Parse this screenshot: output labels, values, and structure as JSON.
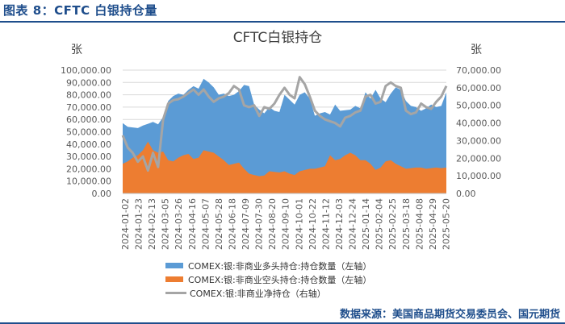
{
  "header": {
    "figure_label": "图表 8：CFTC 白银持仓量",
    "source": "数据来源：美国商品期货交易委员会、国元期货"
  },
  "colors": {
    "long_area": "#5b9bd5",
    "short_area": "#ed7d31",
    "net_line": "#a5a5a5",
    "grid": "#d9d9d9",
    "accent": "#1f4e8c"
  },
  "chart_data": {
    "type": "area",
    "title": "CFTC白银持仓",
    "ylabel_left": "张",
    "ylabel_right": "张",
    "ylim_left": [
      0,
      100000
    ],
    "ylim_right": [
      0,
      70000
    ],
    "left_ticks": [
      "0.00",
      "10,000.00",
      "20,000.00",
      "30,000.00",
      "40,000.00",
      "50,000.00",
      "60,000.00",
      "70,000.00",
      "80,000.00",
      "90,000.00",
      "100,000.00"
    ],
    "right_ticks": [
      "0.00",
      "10,000.00",
      "20,000.00",
      "30,000.00",
      "40,000.00",
      "50,000.00",
      "60,000.00",
      "70,000.00"
    ],
    "x_tick_labels": [
      "2024-01-02",
      "2024-01-23",
      "2024-02-13",
      "2024-03-05",
      "2024-03-26",
      "2024-04-16",
      "2024-05-07",
      "2024-05-28",
      "2024-06-18",
      "2024-07-09",
      "2024-07-30",
      "2024-08-20",
      "2024-09-10",
      "2024-10-01",
      "2024-10-22",
      "2024-11-12",
      "2024-12-03",
      "2024-12-24",
      "2025-01-14",
      "2025-02-04",
      "2025-02-25",
      "2025-03-18",
      "2025-04-08",
      "2025-04-29",
      "2025-05-20"
    ],
    "grid": true,
    "legend_position": "bottom",
    "series": [
      {
        "name": "COMEX:银:非商业多头持仓:持仓数量（左轴）",
        "axis": "left",
        "values": [
          57000,
          54000,
          53500,
          53000,
          55000,
          56500,
          58000,
          56000,
          62000,
          75000,
          79000,
          81000,
          80000,
          84000,
          87000,
          85000,
          93000,
          90000,
          86000,
          80000,
          81000,
          79000,
          80000,
          83000,
          88000,
          87000,
          72000,
          68000,
          65000,
          70000,
          67000,
          66000,
          80000,
          76000,
          72000,
          80000,
          82000,
          77000,
          63000,
          65000,
          66000,
          64000,
          72000,
          67000,
          67500,
          68000,
          71000,
          69000,
          82000,
          77000,
          84000,
          77000,
          74000,
          81000,
          86000,
          84000,
          75000,
          71000,
          70000,
          67000,
          69000,
          72000,
          70000,
          71000,
          82000
        ]
      },
      {
        "name": "COMEX:银:非商业空头持仓:持仓数量（左轴）",
        "axis": "left",
        "values": [
          24000,
          26000,
          29000,
          31000,
          35000,
          42000,
          35000,
          33000,
          34000,
          27000,
          26000,
          29000,
          31000,
          32000,
          28000,
          29000,
          35000,
          34000,
          33000,
          30000,
          27000,
          23000,
          24000,
          25000,
          20000,
          16000,
          15000,
          14000,
          14500,
          18000,
          17500,
          17000,
          18000,
          16000,
          15000,
          18000,
          19000,
          20000,
          20000,
          21000,
          22000,
          31000,
          27000,
          28000,
          31000,
          33000,
          31000,
          27000,
          27000,
          24000,
          19000,
          21000,
          26000,
          27000,
          24000,
          22000,
          20000,
          20500,
          21000,
          21000,
          20000,
          20500,
          21000,
          20500,
          21000
        ]
      },
      {
        "name": "COMEX:银:非商业净持仓（右轴）",
        "axis": "right",
        "values": [
          33000,
          26000,
          23000,
          18000,
          21000,
          13000,
          23000,
          15000,
          42000,
          51000,
          53000,
          53500,
          55000,
          57000,
          59000,
          56000,
          59000,
          55000,
          52000,
          54000,
          55000,
          57000,
          61000,
          59000,
          50000,
          49000,
          50000,
          44000,
          49000,
          48000,
          51000,
          56000,
          60000,
          56000,
          54000,
          66000,
          62000,
          55000,
          47000,
          44000,
          42000,
          41000,
          40000,
          38000,
          43000,
          44000,
          46000,
          47000,
          55000,
          56000,
          51000,
          52000,
          61000,
          63000,
          61000,
          60000,
          47000,
          45000,
          46000,
          51000,
          49000,
          48000,
          52000,
          55000,
          61000
        ]
      }
    ]
  }
}
